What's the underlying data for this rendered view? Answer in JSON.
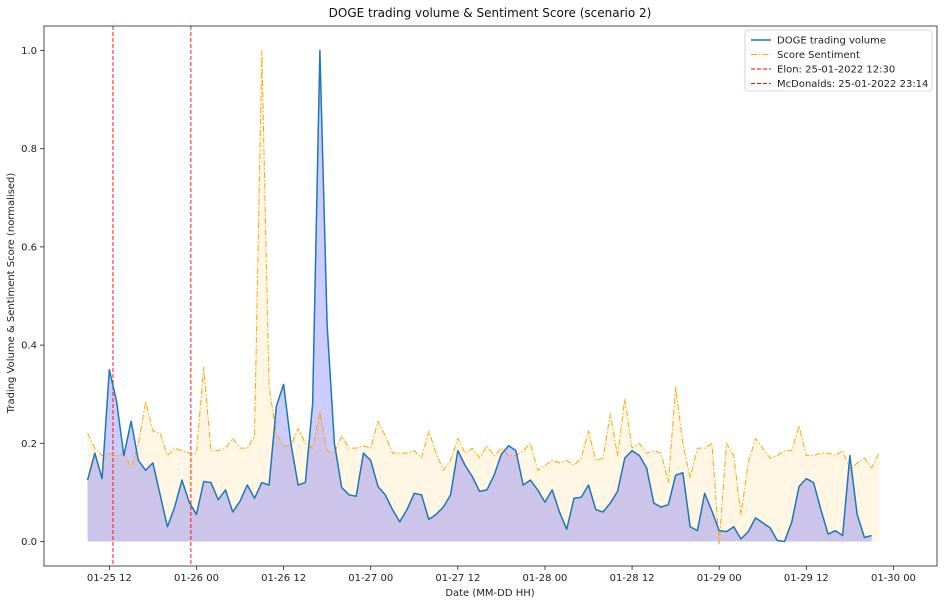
{
  "chart_data": {
    "type": "line",
    "title": "DOGE trading volume & Sentiment Score (scenario 2)",
    "xlabel": "Date (MM-DD HH)",
    "ylabel": "Trading Volume & Sentiment Score (normalised)",
    "x_start": "2022-01-25 09:00",
    "x_step_hours": 1,
    "xlim": [
      "2022-01-25 03:00",
      "2022-01-30 06:00"
    ],
    "ylim": [
      -0.05,
      1.05
    ],
    "xticks": [
      "01-25 12",
      "01-26 00",
      "01-26 12",
      "01-27 00",
      "01-27 12",
      "01-28 00",
      "01-28 12",
      "01-29 00",
      "01-29 12",
      "01-30 00"
    ],
    "yticks": [
      "0.0",
      "0.2",
      "0.4",
      "0.6",
      "0.8",
      "1.0"
    ],
    "legend_position": "top-right",
    "grid": false,
    "series": [
      {
        "name": "DOGE trading volume",
        "color": "#1f77b4",
        "fill": "#0000ff",
        "style": "solid",
        "values": [
          0.125,
          0.18,
          0.128,
          0.35,
          0.285,
          0.175,
          0.245,
          0.165,
          0.145,
          0.16,
          0.095,
          0.03,
          0.07,
          0.125,
          0.08,
          0.055,
          0.122,
          0.12,
          0.085,
          0.105,
          0.06,
          0.082,
          0.115,
          0.088,
          0.12,
          0.115,
          0.275,
          0.32,
          0.2,
          0.115,
          0.12,
          0.28,
          1.0,
          0.44,
          0.2,
          0.11,
          0.095,
          0.092,
          0.18,
          0.165,
          0.112,
          0.095,
          0.065,
          0.04,
          0.065,
          0.098,
          0.095,
          0.045,
          0.055,
          0.07,
          0.095,
          0.185,
          0.155,
          0.132,
          0.102,
          0.105,
          0.135,
          0.178,
          0.195,
          0.185,
          0.115,
          0.125,
          0.105,
          0.08,
          0.105,
          0.06,
          0.025,
          0.088,
          0.09,
          0.115,
          0.065,
          0.06,
          0.078,
          0.102,
          0.17,
          0.185,
          0.175,
          0.15,
          0.078,
          0.07,
          0.075,
          0.135,
          0.14,
          0.03,
          0.022,
          0.098,
          0.062,
          0.022,
          0.02,
          0.03,
          0.005,
          0.02,
          0.048,
          0.038,
          0.028,
          0.002,
          0.0,
          0.04,
          0.112,
          0.128,
          0.12,
          0.065,
          0.015,
          0.022,
          0.012,
          0.175,
          0.055,
          0.008,
          0.012
        ]
      },
      {
        "name": "Score Sentiment",
        "color": "#ffa500",
        "fill": "#ffd27a",
        "style": "dashdot",
        "values": [
          0.22,
          0.19,
          0.175,
          0.18,
          0.175,
          0.18,
          0.15,
          0.2,
          0.285,
          0.225,
          0.22,
          0.175,
          0.19,
          0.185,
          0.18,
          0.18,
          0.355,
          0.185,
          0.185,
          0.19,
          0.21,
          0.19,
          0.19,
          0.215,
          1.0,
          0.315,
          0.22,
          0.195,
          0.195,
          0.23,
          0.2,
          0.19,
          0.265,
          0.185,
          0.18,
          0.215,
          0.19,
          0.19,
          0.195,
          0.19,
          0.245,
          0.215,
          0.18,
          0.18,
          0.18,
          0.185,
          0.17,
          0.225,
          0.18,
          0.145,
          0.165,
          0.21,
          0.18,
          0.19,
          0.17,
          0.195,
          0.175,
          0.19,
          0.175,
          0.175,
          0.185,
          0.2,
          0.145,
          0.155,
          0.165,
          0.16,
          0.165,
          0.155,
          0.17,
          0.225,
          0.165,
          0.17,
          0.26,
          0.175,
          0.29,
          0.19,
          0.2,
          0.18,
          0.185,
          0.18,
          0.12,
          0.315,
          0.2,
          0.13,
          0.19,
          0.19,
          0.2,
          -0.005,
          0.2,
          0.175,
          0.055,
          0.16,
          0.21,
          0.19,
          0.17,
          0.175,
          0.185,
          0.185,
          0.235,
          0.175,
          0.175,
          0.18,
          0.18,
          0.175,
          0.185,
          0.145,
          0.16,
          0.17,
          0.15,
          0.18
        ]
      }
    ],
    "vlines": [
      {
        "name": "Elon: 25-01-2022 12:30",
        "x": "2022-01-25 12:30",
        "color": "#ff0000",
        "style": "dashed"
      },
      {
        "name": "McDonalds: 25-01-2022 23:14",
        "x": "2022-01-25 23:14",
        "color": "#ff0000",
        "style": "dashed"
      }
    ]
  }
}
